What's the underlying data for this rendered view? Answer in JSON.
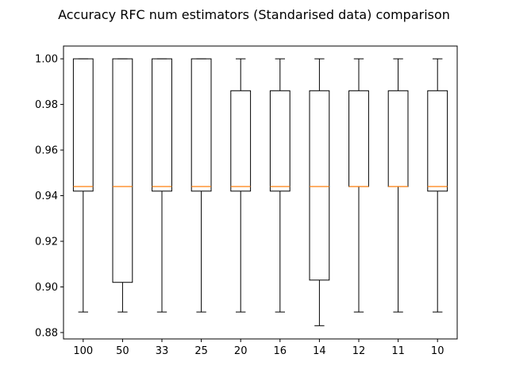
{
  "chart_data": {
    "type": "box",
    "title": "Accuracy RFC num estimators (Standarised data) comparison",
    "xlabel": "",
    "ylabel": "",
    "categories": [
      "100",
      "50",
      "33",
      "25",
      "20",
      "16",
      "14",
      "12",
      "11",
      "10"
    ],
    "boxes": [
      {
        "category": "100",
        "whisker_low": 0.889,
        "q1": 0.942,
        "median": 0.944,
        "q3": 1.0,
        "whisker_high": 1.0
      },
      {
        "category": "50",
        "whisker_low": 0.889,
        "q1": 0.902,
        "median": 0.944,
        "q3": 1.0,
        "whisker_high": 1.0
      },
      {
        "category": "33",
        "whisker_low": 0.889,
        "q1": 0.942,
        "median": 0.944,
        "q3": 1.0,
        "whisker_high": 1.0
      },
      {
        "category": "25",
        "whisker_low": 0.889,
        "q1": 0.942,
        "median": 0.944,
        "q3": 1.0,
        "whisker_high": 1.0
      },
      {
        "category": "20",
        "whisker_low": 0.889,
        "q1": 0.942,
        "median": 0.944,
        "q3": 0.986,
        "whisker_high": 1.0
      },
      {
        "category": "16",
        "whisker_low": 0.889,
        "q1": 0.942,
        "median": 0.944,
        "q3": 0.986,
        "whisker_high": 1.0
      },
      {
        "category": "14",
        "whisker_low": 0.883,
        "q1": 0.903,
        "median": 0.944,
        "q3": 0.986,
        "whisker_high": 1.0
      },
      {
        "category": "12",
        "whisker_low": 0.889,
        "q1": 0.944,
        "median": 0.944,
        "q3": 0.986,
        "whisker_high": 1.0
      },
      {
        "category": "11",
        "whisker_low": 0.889,
        "q1": 0.944,
        "median": 0.944,
        "q3": 0.986,
        "whisker_high": 1.0
      },
      {
        "category": "10",
        "whisker_low": 0.889,
        "q1": 0.942,
        "median": 0.944,
        "q3": 0.986,
        "whisker_high": 1.0
      }
    ],
    "yticks": [
      0.88,
      0.9,
      0.92,
      0.94,
      0.96,
      0.98,
      1.0
    ],
    "ytick_labels": [
      "0.88",
      "0.90",
      "0.92",
      "0.94",
      "0.96",
      "0.98",
      "1.00"
    ],
    "ylim": [
      0.8772,
      1.0056
    ],
    "grid": false,
    "legend": "none",
    "colors": {
      "box": "#000000",
      "median": "#ff7f0e",
      "background": "#ffffff"
    }
  }
}
